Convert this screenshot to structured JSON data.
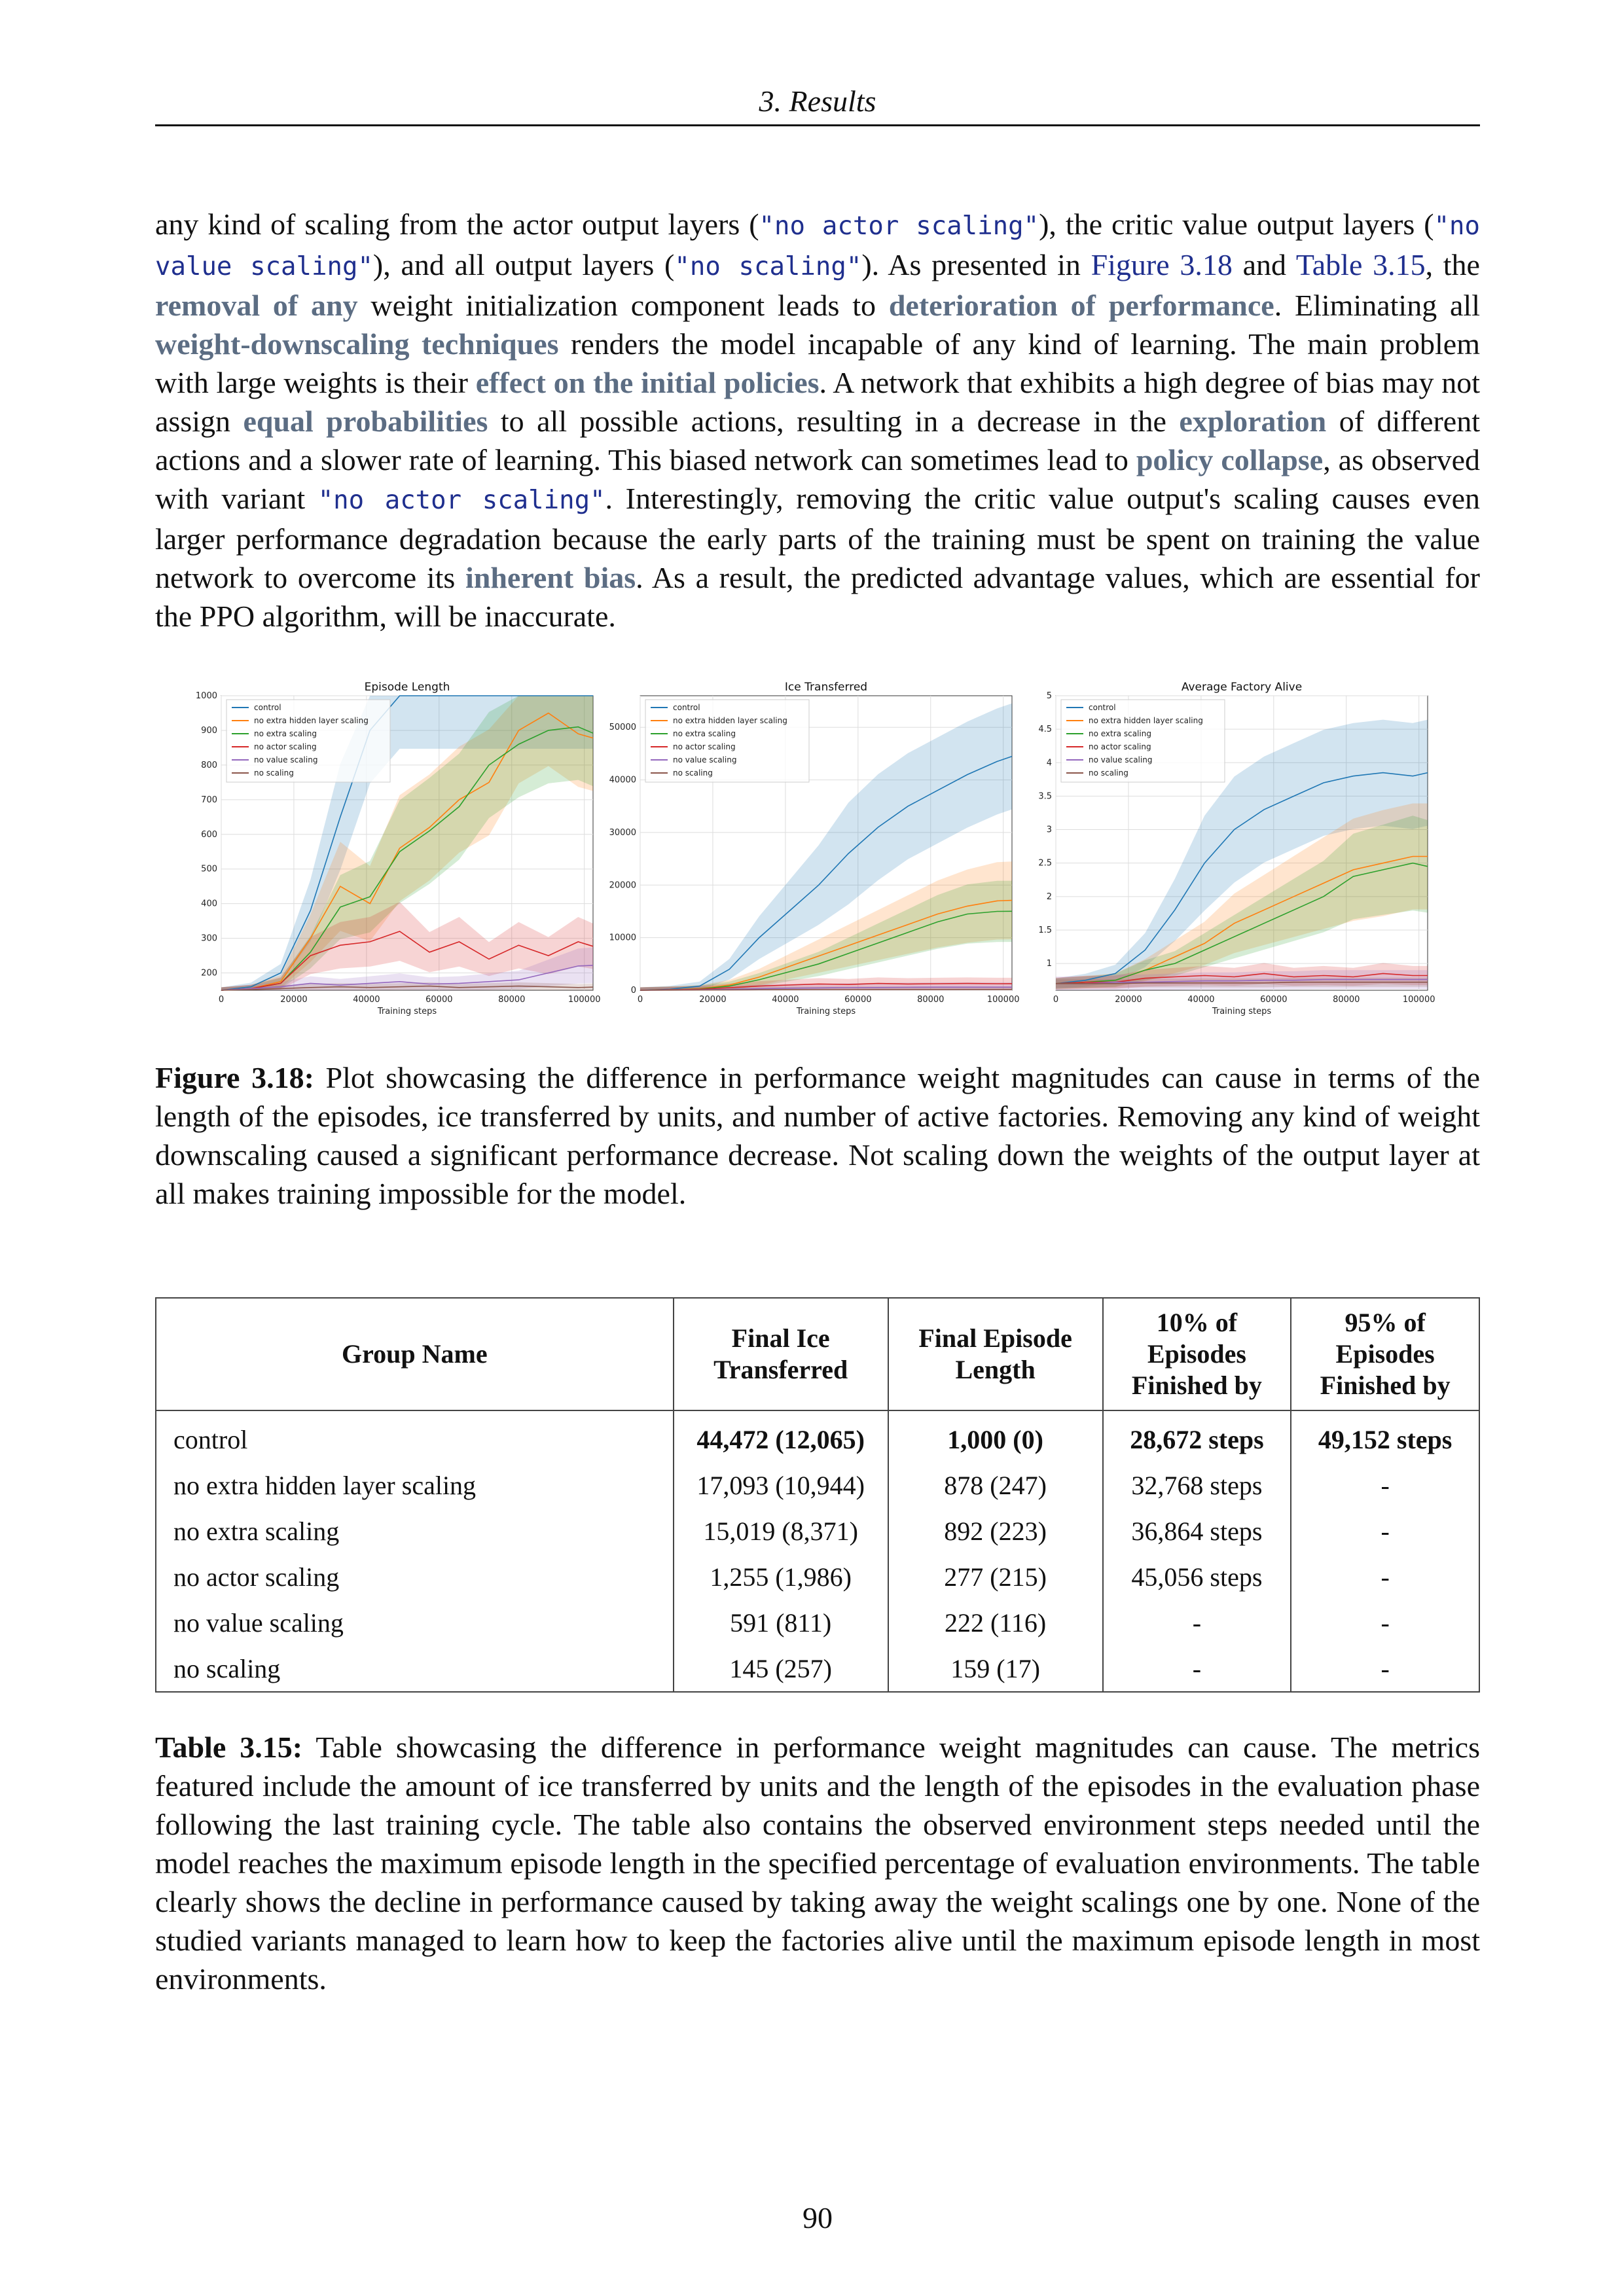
{
  "header": {
    "running_title": "3. Results"
  },
  "body": {
    "s1": "any kind of scaling from the actor output layers (",
    "c1": "\"no actor scaling\"",
    "s2": "), the critic value output layers (",
    "c2": "\"no value scaling\"",
    "s3": "), and all output layers (",
    "c3": "\"no scaling\"",
    "s4": "). As presented in ",
    "r1": "Figure 3.18",
    "s5": " and ",
    "r2": "Table 3.15",
    "s6": ", the ",
    "h1": "removal of any",
    "s7": " weight initialization component leads to ",
    "h2": "deterioration of performance",
    "s8": ". Eliminating all ",
    "h3": "weight-downscaling techniques",
    "s9": " renders the model incapable of any kind of learning. The main problem with large weights is their ",
    "h4": "effect on the initial policies",
    "s10": ". A network that exhibits a high degree of bias may not assign ",
    "h5": "equal probabilities",
    "s11": " to all possible actions, resulting in a decrease in the ",
    "h6": "exploration",
    "s12": " of different actions and a slower rate of learning. This biased network can sometimes lead to ",
    "h7": "policy collapse",
    "s13": ", as observed with variant ",
    "c4": "\"no actor scaling\"",
    "s14": ". Interestingly, removing the critic value output's scaling causes even larger performance degradation because the early parts of the training must be spent on training the value network to overcome its ",
    "h8": "inherent bias",
    "s15": ". As a result, the predicted advantage values, which are essential for the PPO algorithm, will be inaccurate."
  },
  "figure": {
    "caption_label": "Figure 3.18:",
    "caption_text": " Plot showcasing the difference in performance weight magnitudes can cause in terms of the length of the episodes, ice transferred by units, and number of active factories. Removing any kind of weight downscaling caused a significant performance decrease. Not scaling down the weights of the output layer at all makes training impossible for the model."
  },
  "colors": {
    "control": "#1f77b4",
    "no extra hidden layer scaling": "#ff7f0e",
    "no extra scaling": "#2ca02c",
    "no actor scaling": "#d62728",
    "no value scaling": "#9467bd",
    "no scaling": "#8c564b"
  },
  "chart_data": [
    {
      "type": "line",
      "title": "Episode Length",
      "xlabel": "Training steps",
      "ylabel": "",
      "xlim": [
        0,
        102400
      ],
      "ylim": [
        150,
        1000
      ],
      "yticks": [
        200,
        300,
        400,
        500,
        600,
        700,
        800,
        900,
        1000
      ],
      "xticks": [
        0,
        20000,
        40000,
        60000,
        80000,
        100000
      ],
      "grid": true,
      "legend": "top-left",
      "x": [
        0,
        8192,
        16384,
        24576,
        32768,
        40960,
        49152,
        57344,
        65536,
        73728,
        81920,
        90112,
        98304,
        102400
      ],
      "series": [
        {
          "name": "control",
          "values": [
            150,
            160,
            200,
            380,
            650,
            900,
            1000,
            1000,
            1000,
            1000,
            1000,
            1000,
            1000,
            1000
          ]
        },
        {
          "name": "no extra hidden layer scaling",
          "values": [
            150,
            155,
            175,
            300,
            450,
            400,
            560,
            620,
            700,
            750,
            900,
            950,
            890,
            878
          ]
        },
        {
          "name": "no extra scaling",
          "values": [
            150,
            155,
            170,
            260,
            390,
            420,
            550,
            610,
            680,
            800,
            860,
            900,
            910,
            892
          ]
        },
        {
          "name": "no actor scaling",
          "values": [
            150,
            155,
            170,
            250,
            280,
            290,
            320,
            260,
            290,
            240,
            280,
            250,
            290,
            277
          ]
        },
        {
          "name": "no value scaling",
          "values": [
            150,
            155,
            160,
            170,
            165,
            170,
            175,
            168,
            170,
            175,
            180,
            200,
            220,
            222
          ]
        },
        {
          "name": "no scaling",
          "values": [
            150,
            152,
            155,
            158,
            160,
            158,
            160,
            162,
            158,
            160,
            162,
            160,
            158,
            159
          ]
        }
      ]
    },
    {
      "type": "line",
      "title": "Ice Transferred",
      "xlabel": "Training steps",
      "ylabel": "",
      "xlim": [
        0,
        102400
      ],
      "ylim": [
        0,
        56000
      ],
      "yticks": [
        0,
        10000,
        20000,
        30000,
        40000,
        50000
      ],
      "xticks": [
        0,
        20000,
        40000,
        60000,
        80000,
        100000
      ],
      "grid": true,
      "legend": "top-left",
      "x": [
        0,
        8192,
        16384,
        24576,
        32768,
        40960,
        49152,
        57344,
        65536,
        73728,
        81920,
        90112,
        98304,
        102400
      ],
      "series": [
        {
          "name": "control",
          "values": [
            0,
            200,
            800,
            4000,
            10000,
            15000,
            20000,
            26000,
            31000,
            35000,
            38000,
            41000,
            43500,
            44472
          ]
        },
        {
          "name": "no extra hidden layer scaling",
          "values": [
            0,
            100,
            300,
            1000,
            2500,
            4500,
            6500,
            8500,
            10500,
            12500,
            14500,
            16000,
            17000,
            17093
          ]
        },
        {
          "name": "no extra scaling",
          "values": [
            0,
            100,
            250,
            800,
            2000,
            3500,
            5000,
            7000,
            9000,
            11000,
            13000,
            14500,
            15000,
            15019
          ]
        },
        {
          "name": "no actor scaling",
          "values": [
            0,
            100,
            200,
            500,
            800,
            1000,
            1200,
            1100,
            1300,
            1200,
            1250,
            1300,
            1250,
            1255
          ]
        },
        {
          "name": "no value scaling",
          "values": [
            0,
            50,
            100,
            200,
            300,
            400,
            450,
            500,
            520,
            560,
            580,
            590,
            590,
            591
          ]
        },
        {
          "name": "no scaling",
          "values": [
            0,
            20,
            50,
            80,
            100,
            110,
            120,
            130,
            135,
            140,
            142,
            144,
            145,
            145
          ]
        }
      ]
    },
    {
      "type": "line",
      "title": "Average Factory Alive",
      "xlabel": "Training steps",
      "ylabel": "",
      "xlim": [
        0,
        102400
      ],
      "ylim": [
        0.6,
        5.0
      ],
      "yticks": [
        1.0,
        1.5,
        2.0,
        2.5,
        3.0,
        3.5,
        4.0,
        4.5,
        5.0
      ],
      "xticks": [
        0,
        20000,
        40000,
        60000,
        80000,
        100000
      ],
      "grid": true,
      "legend": "top-left",
      "x": [
        0,
        8192,
        16384,
        24576,
        32768,
        40960,
        49152,
        57344,
        65536,
        73728,
        81920,
        90112,
        98304,
        102400
      ],
      "series": [
        {
          "name": "control",
          "values": [
            0.7,
            0.75,
            0.85,
            1.2,
            1.8,
            2.5,
            3.0,
            3.3,
            3.5,
            3.7,
            3.8,
            3.85,
            3.8,
            3.85
          ]
        },
        {
          "name": "no extra hidden layer scaling",
          "values": [
            0.7,
            0.72,
            0.75,
            0.9,
            1.1,
            1.3,
            1.6,
            1.8,
            2.0,
            2.2,
            2.4,
            2.5,
            2.6,
            2.6
          ]
        },
        {
          "name": "no extra scaling",
          "values": [
            0.7,
            0.72,
            0.75,
            0.9,
            1.0,
            1.2,
            1.4,
            1.6,
            1.8,
            2.0,
            2.3,
            2.4,
            2.5,
            2.45
          ]
        },
        {
          "name": "no actor scaling",
          "values": [
            0.7,
            0.72,
            0.72,
            0.78,
            0.8,
            0.82,
            0.8,
            0.85,
            0.8,
            0.82,
            0.8,
            0.85,
            0.82,
            0.82
          ]
        },
        {
          "name": "no value scaling",
          "values": [
            0.7,
            0.7,
            0.72,
            0.72,
            0.73,
            0.74,
            0.74,
            0.75,
            0.75,
            0.76,
            0.76,
            0.76,
            0.76,
            0.76
          ]
        },
        {
          "name": "no scaling",
          "values": [
            0.7,
            0.7,
            0.7,
            0.71,
            0.71,
            0.71,
            0.71,
            0.71,
            0.72,
            0.72,
            0.72,
            0.72,
            0.72,
            0.72
          ]
        }
      ]
    }
  ],
  "table": {
    "headers": [
      "Group Name",
      "Final Ice Transferred",
      "Final Episode Length",
      "10% of Episodes Finished by",
      "95% of Episodes Finished by"
    ],
    "rows": [
      [
        "control",
        "44,472 (12,065)",
        "1,000 (0)",
        "28,672 steps",
        "49,152 steps"
      ],
      [
        "no extra hidden layer scaling",
        "17,093 (10,944)",
        "878 (247)",
        "32,768 steps",
        "-"
      ],
      [
        "no extra scaling",
        "15,019 (8,371)",
        "892 (223)",
        "36,864 steps",
        "-"
      ],
      [
        "no actor scaling",
        "1,255 (1,986)",
        "277 (215)",
        "45,056 steps",
        "-"
      ],
      [
        "no value scaling",
        "591 (811)",
        "222 (116)",
        "-",
        "-"
      ],
      [
        "no scaling",
        "145 (257)",
        "159 (17)",
        "-",
        "-"
      ]
    ],
    "caption_label": "Table 3.15:",
    "caption_text": " Table showcasing the difference in performance weight magnitudes can cause. The metrics featured include the amount of ice transferred by units and the length of the episodes in the evaluation phase following the last training cycle. The table also contains the observed environment steps needed until the model reaches the maximum episode length in the specified percentage of evaluation environments. The table clearly shows the decline in performance caused by taking away the weight scalings one by one. None of the studied variants managed to learn how to keep the factories alive until the maximum episode length in most environments."
  },
  "footer": {
    "page_number": "90"
  }
}
